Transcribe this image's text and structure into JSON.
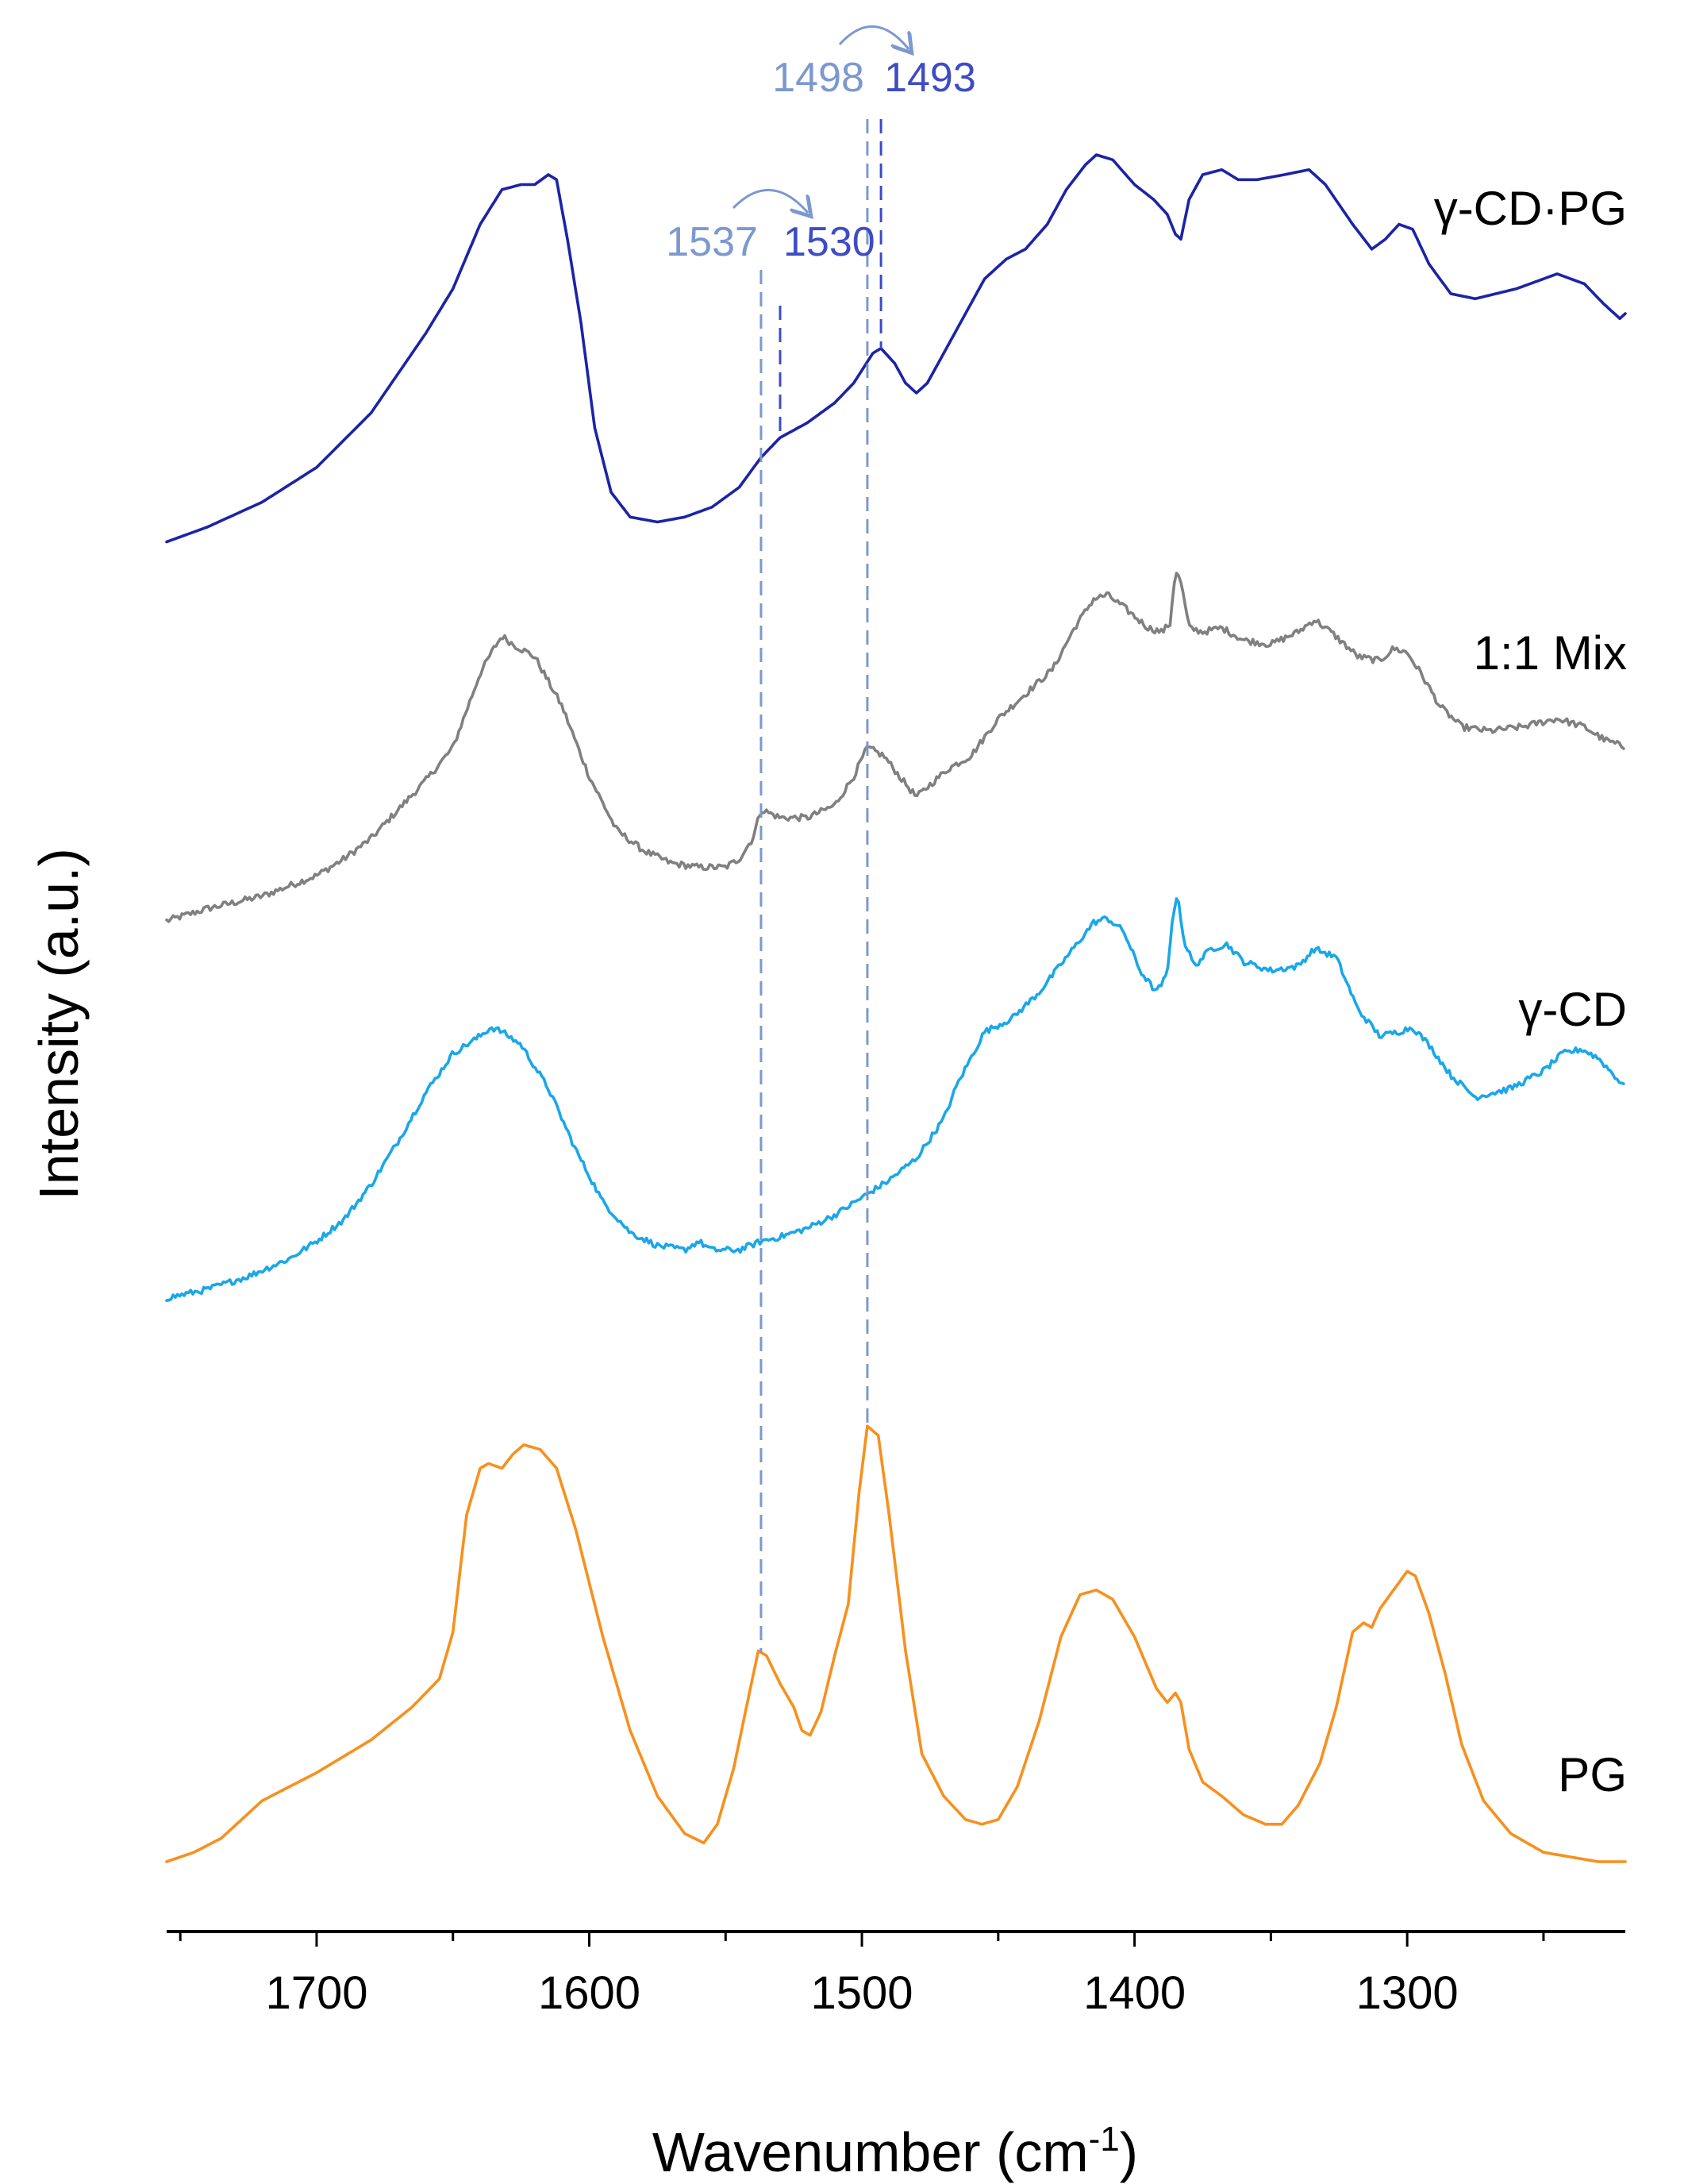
{
  "chart_data": {
    "type": "line",
    "title": "",
    "xlabel": "Wavenumber (cm",
    "xlabel_sup": "-1",
    "xlabel_close": ")",
    "ylabel": "Intensity (a.u.)",
    "xlim": [
      1755,
      1220
    ],
    "x_reversed": true,
    "xticks": [
      1700,
      1600,
      1500,
      1400,
      1300
    ],
    "yticks_shown": false,
    "colors": {
      "gamma_cd_pg": "#1b24a6",
      "mix": "#808080",
      "gamma_cd": "#1aa7e8",
      "pg": "#f7901e",
      "guide_light": "#7c98cf",
      "guide_dark": "#3e4cc4"
    },
    "series": [
      {
        "name": "γ-CD·PG",
        "color_key": "gamma_cd_pg",
        "noise": 0,
        "x": [
          1755,
          1740,
          1720,
          1700,
          1680,
          1660,
          1650,
          1640,
          1632,
          1625,
          1620,
          1615,
          1612,
          1608,
          1603,
          1598,
          1592,
          1585,
          1575,
          1565,
          1555,
          1545,
          1537,
          1530,
          1520,
          1510,
          1503,
          1496,
          1493,
          1488,
          1484,
          1480,
          1476,
          1470,
          1462,
          1455,
          1447,
          1440,
          1432,
          1425,
          1418,
          1414,
          1408,
          1400,
          1393,
          1388,
          1385,
          1383,
          1380,
          1375,
          1368,
          1362,
          1355,
          1345,
          1336,
          1330,
          1320,
          1313,
          1308,
          1303,
          1298,
          1292,
          1284,
          1275,
          1260,
          1245,
          1235,
          1228,
          1222,
          1220
        ],
        "y": [
          0.02,
          0.05,
          0.1,
          0.17,
          0.28,
          0.44,
          0.53,
          0.66,
          0.73,
          0.74,
          0.74,
          0.76,
          0.75,
          0.63,
          0.46,
          0.25,
          0.12,
          0.07,
          0.06,
          0.07,
          0.09,
          0.13,
          0.19,
          0.23,
          0.26,
          0.3,
          0.34,
          0.4,
          0.41,
          0.38,
          0.34,
          0.32,
          0.34,
          0.4,
          0.48,
          0.55,
          0.59,
          0.61,
          0.66,
          0.73,
          0.78,
          0.8,
          0.79,
          0.74,
          0.71,
          0.68,
          0.64,
          0.63,
          0.71,
          0.76,
          0.77,
          0.75,
          0.75,
          0.76,
          0.77,
          0.74,
          0.66,
          0.61,
          0.63,
          0.66,
          0.65,
          0.58,
          0.52,
          0.51,
          0.53,
          0.56,
          0.54,
          0.5,
          0.47,
          0.48
        ]
      },
      {
        "name": "1:1 Mix",
        "color_key": "mix",
        "noise": 0.008,
        "x": [
          1755,
          1740,
          1720,
          1700,
          1690,
          1680,
          1670,
          1660,
          1650,
          1645,
          1640,
          1635,
          1632,
          1628,
          1620,
          1610,
          1600,
          1590,
          1580,
          1570,
          1560,
          1550,
          1545,
          1540,
          1537,
          1530,
          1520,
          1510,
          1503,
          1498,
          1492,
          1485,
          1480,
          1475,
          1468,
          1460,
          1450,
          1440,
          1430,
          1422,
          1415,
          1410,
          1404,
          1395,
          1390,
          1387,
          1385,
          1383,
          1380,
          1375,
          1368,
          1360,
          1350,
          1340,
          1334,
          1328,
          1318,
          1310,
          1305,
          1300,
          1295,
          1288,
          1280,
          1270,
          1258,
          1245,
          1235,
          1228,
          1220
        ],
        "y": [
          0.0,
          0.03,
          0.06,
          0.11,
          0.15,
          0.2,
          0.27,
          0.34,
          0.42,
          0.51,
          0.6,
          0.66,
          0.69,
          0.67,
          0.64,
          0.52,
          0.35,
          0.22,
          0.17,
          0.14,
          0.13,
          0.13,
          0.15,
          0.2,
          0.27,
          0.25,
          0.25,
          0.28,
          0.35,
          0.42,
          0.4,
          0.34,
          0.3,
          0.33,
          0.37,
          0.4,
          0.49,
          0.55,
          0.61,
          0.71,
          0.78,
          0.79,
          0.76,
          0.71,
          0.7,
          0.72,
          0.85,
          0.82,
          0.71,
          0.7,
          0.71,
          0.68,
          0.67,
          0.7,
          0.73,
          0.7,
          0.64,
          0.63,
          0.66,
          0.65,
          0.6,
          0.52,
          0.47,
          0.46,
          0.47,
          0.49,
          0.47,
          0.44,
          0.42
        ]
      },
      {
        "name": "γ-CD",
        "color_key": "gamma_cd",
        "noise": 0.007,
        "x": [
          1755,
          1740,
          1725,
          1710,
          1700,
          1690,
          1680,
          1670,
          1660,
          1650,
          1645,
          1640,
          1636,
          1632,
          1625,
          1615,
          1605,
          1595,
          1585,
          1575,
          1565,
          1560,
          1555,
          1545,
          1537,
          1530,
          1520,
          1510,
          1500,
          1490,
          1480,
          1470,
          1465,
          1460,
          1455,
          1445,
          1435,
          1425,
          1415,
          1410,
          1404,
          1398,
          1392,
          1388,
          1386,
          1384,
          1382,
          1378,
          1372,
          1366,
          1360,
          1350,
          1340,
          1334,
          1326,
          1318,
          1310,
          1303,
          1298,
          1292,
          1284,
          1275,
          1262,
          1250,
          1243,
          1236,
          1230,
          1224,
          1220
        ],
        "y": [
          0.0,
          0.02,
          0.05,
          0.09,
          0.13,
          0.18,
          0.26,
          0.36,
          0.47,
          0.56,
          0.58,
          0.6,
          0.62,
          0.61,
          0.58,
          0.48,
          0.34,
          0.22,
          0.15,
          0.12,
          0.11,
          0.13,
          0.11,
          0.11,
          0.13,
          0.14,
          0.16,
          0.19,
          0.23,
          0.27,
          0.32,
          0.41,
          0.49,
          0.55,
          0.61,
          0.64,
          0.7,
          0.78,
          0.86,
          0.87,
          0.84,
          0.75,
          0.7,
          0.74,
          0.88,
          0.92,
          0.82,
          0.76,
          0.8,
          0.81,
          0.77,
          0.75,
          0.76,
          0.8,
          0.78,
          0.66,
          0.6,
          0.61,
          0.62,
          0.58,
          0.51,
          0.46,
          0.48,
          0.52,
          0.56,
          0.57,
          0.55,
          0.51,
          0.48
        ]
      },
      {
        "name": "PG",
        "color_key": "pg",
        "noise": 0,
        "x": [
          1755,
          1745,
          1735,
          1720,
          1700,
          1680,
          1665,
          1655,
          1650,
          1645,
          1640,
          1637,
          1632,
          1628,
          1624,
          1618,
          1612,
          1605,
          1595,
          1585,
          1575,
          1565,
          1558,
          1553,
          1547,
          1542,
          1538,
          1535,
          1530,
          1525,
          1522,
          1519,
          1515,
          1510,
          1505,
          1501,
          1498,
          1494,
          1490,
          1484,
          1478,
          1470,
          1462,
          1456,
          1450,
          1443,
          1435,
          1427,
          1420,
          1414,
          1408,
          1400,
          1392,
          1388,
          1385,
          1383,
          1380,
          1375,
          1368,
          1360,
          1352,
          1346,
          1340,
          1332,
          1326,
          1320,
          1316,
          1313,
          1310,
          1305,
          1300,
          1297,
          1292,
          1286,
          1280,
          1272,
          1262,
          1250,
          1240,
          1230,
          1224,
          1220
        ],
        "y": [
          0.0,
          0.02,
          0.05,
          0.13,
          0.19,
          0.26,
          0.33,
          0.39,
          0.49,
          0.74,
          0.84,
          0.85,
          0.84,
          0.87,
          0.89,
          0.88,
          0.84,
          0.71,
          0.48,
          0.28,
          0.14,
          0.06,
          0.04,
          0.08,
          0.2,
          0.34,
          0.45,
          0.44,
          0.38,
          0.33,
          0.28,
          0.27,
          0.32,
          0.44,
          0.55,
          0.79,
          0.93,
          0.91,
          0.74,
          0.45,
          0.23,
          0.14,
          0.09,
          0.08,
          0.09,
          0.16,
          0.3,
          0.48,
          0.57,
          0.58,
          0.56,
          0.48,
          0.37,
          0.34,
          0.36,
          0.34,
          0.24,
          0.17,
          0.14,
          0.1,
          0.08,
          0.08,
          0.12,
          0.21,
          0.33,
          0.49,
          0.51,
          0.5,
          0.54,
          0.58,
          0.62,
          0.61,
          0.53,
          0.4,
          0.25,
          0.13,
          0.06,
          0.02,
          0.01,
          0.0,
          0.0,
          0.0
        ]
      }
    ],
    "annotations": {
      "guides": [
        {
          "label": "1537",
          "x": 1537,
          "tone": "guide_light"
        },
        {
          "label": "1530",
          "x": 1530,
          "tone": "guide_dark"
        },
        {
          "label": "1498",
          "x": 1498,
          "tone": "guide_light"
        },
        {
          "label": "1493",
          "x": 1493,
          "tone": "guide_dark"
        }
      ]
    }
  }
}
